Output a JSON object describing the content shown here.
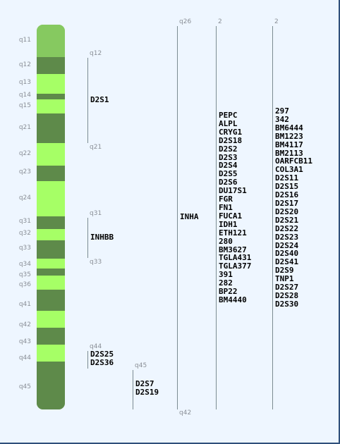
{
  "chromosome": {
    "bands": [
      {
        "name": "q11",
        "tone": "top"
      },
      {
        "name": "q12",
        "tone": "dark"
      },
      {
        "name": "q13",
        "tone": "light"
      },
      {
        "name": "q14",
        "tone": "dark"
      },
      {
        "name": "q15",
        "tone": "light"
      },
      {
        "name": "q21",
        "tone": "dark"
      },
      {
        "name": "q22",
        "tone": "light"
      },
      {
        "name": "q23",
        "tone": "dark"
      },
      {
        "name": "q24",
        "tone": "light"
      },
      {
        "name": "q31",
        "tone": "dark"
      },
      {
        "name": "q32",
        "tone": "light"
      },
      {
        "name": "q33",
        "tone": "dark"
      },
      {
        "name": "q34",
        "tone": "light"
      },
      {
        "name": "q35",
        "tone": "dark"
      },
      {
        "name": "q36",
        "tone": "light"
      },
      {
        "name": "q41",
        "tone": "dark"
      },
      {
        "name": "q42",
        "tone": "light"
      },
      {
        "name": "q43",
        "tone": "dark"
      },
      {
        "name": "q44",
        "tone": "light"
      },
      {
        "name": "q45",
        "tone": "dark"
      }
    ],
    "colors": {
      "light": "#a6ff66",
      "dark": "#5e8a4a",
      "top": "#86c960",
      "background": "#eef6ff"
    }
  },
  "loci": {
    "d2s1": {
      "start": "q12",
      "end": "q21",
      "genes": [
        "D2S1"
      ]
    },
    "inhbb": {
      "start": "q31",
      "end": "q33",
      "genes": [
        "INHBB"
      ]
    },
    "q44group": {
      "start": "q44",
      "genes": [
        "D2S25",
        "D2S36"
      ]
    },
    "q45group": {
      "start": "q45",
      "genes": [
        "D2S7",
        "D2S19"
      ]
    },
    "inha": {
      "start": "q26",
      "end": "q42",
      "genes": [
        "INHA"
      ]
    },
    "col2": {
      "start": "2",
      "genes": [
        "PEPC",
        "ALPL",
        "CRYG1",
        "D2S18",
        "D2S2",
        "D2S3",
        "D2S4",
        "D2S5",
        "D2S6",
        "DU17S1",
        "FGR",
        "FN1",
        "FUCA1",
        "IDH1",
        "ETH121",
        "280",
        "BM3627",
        "TGLA431",
        "TGLA377",
        "391",
        "282",
        "BP22",
        "BM4440"
      ]
    },
    "col3": {
      "start": "2",
      "genes": [
        "297",
        "342",
        "BM6444",
        "BM1223",
        "BM4117",
        "BM2113",
        "OARFCB11",
        "COL3A1",
        "D2S11",
        "D2S15",
        "D2S16",
        "D2S17",
        "D2S20",
        "D2S21",
        "D2S22",
        "D2S23",
        "D2S24",
        "D2S40",
        "D2S41",
        "D2S9",
        "TNP1",
        "D2S27",
        "D2S28",
        "D2S30"
      ]
    }
  }
}
